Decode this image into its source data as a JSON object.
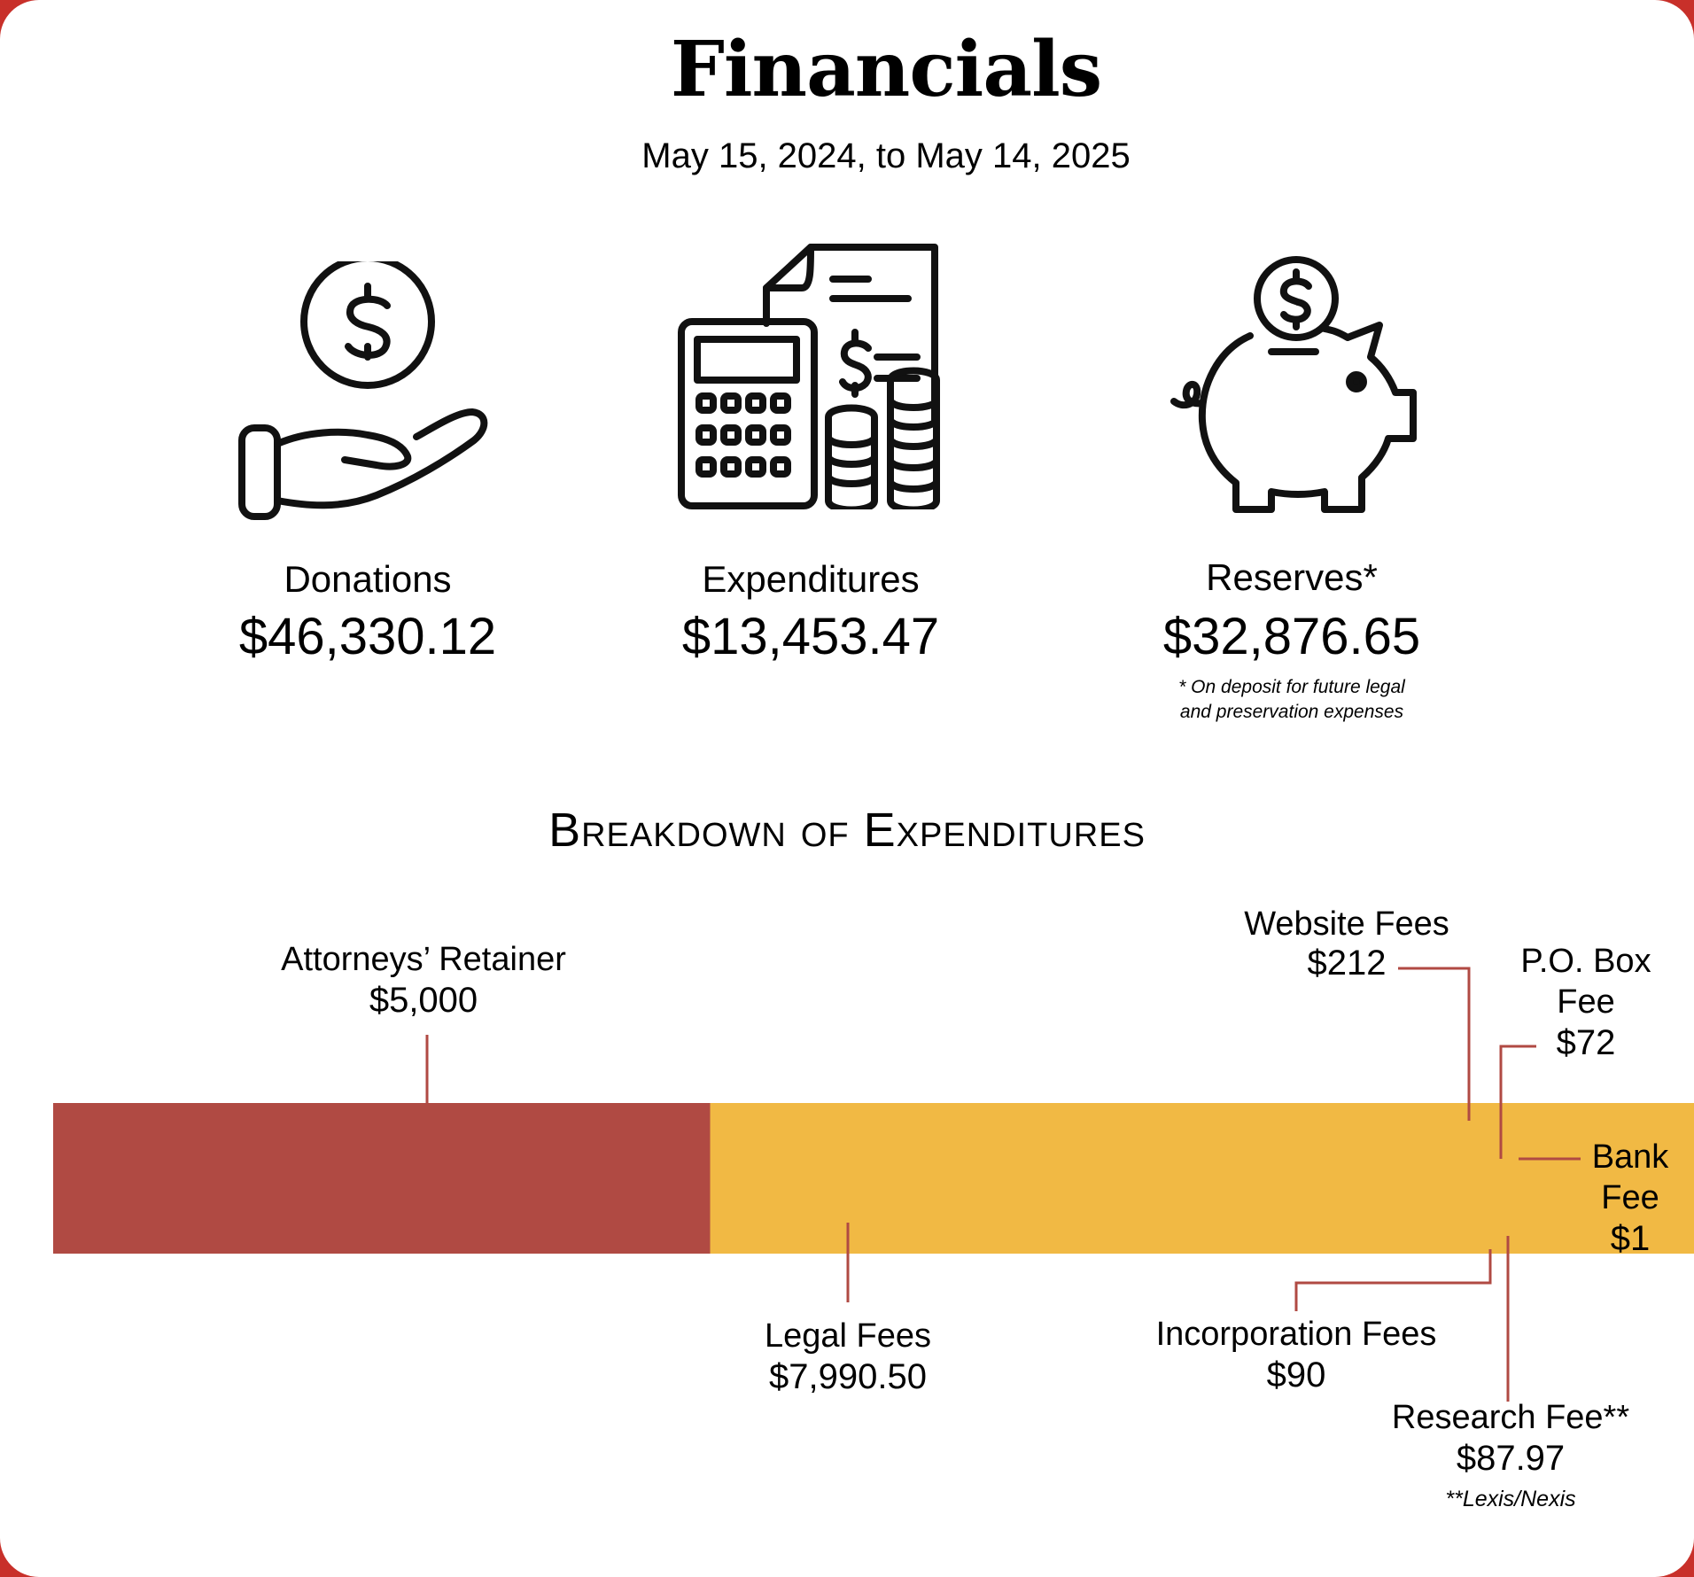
{
  "title": "Financials",
  "subtitle": "May 15, 2024, to May 14, 2025",
  "stats": [
    {
      "label": "Donations",
      "value": "$46,330.12",
      "icon": "hand-coin-icon"
    },
    {
      "label": "Expenditures",
      "value": "$13,453.47",
      "icon": "calculator-bill-icon"
    },
    {
      "label": "Reserves*",
      "value": "$32,876.65",
      "icon": "piggy-bank-icon",
      "note_line1": "* On deposit for future legal",
      "note_line2": "and preservation expenses"
    }
  ],
  "chart_data": {
    "type": "bar",
    "title": "Breakdown of Expenditures",
    "orientation": "horizontal-stacked",
    "series": [
      {
        "name": "Attorneys’ Retainer",
        "value": 5000,
        "label": "$5,000",
        "color": "#b04a43"
      },
      {
        "name": "Legal Fees",
        "value": 7990.5,
        "label": "$7,990.50",
        "color": "#f1b944"
      },
      {
        "name": "Website Fees",
        "value": 212,
        "label": "$212",
        "color": "#862d85"
      },
      {
        "name": "Incorporation Fees",
        "value": 90,
        "label": "$90",
        "color": "#f6e14a"
      },
      {
        "name": "Research Fee**",
        "value": 87.97,
        "label": "$87.97",
        "color": "#6fc7e8"
      },
      {
        "name": "P.O. Box Fee",
        "value": 72,
        "label": "$72",
        "color": "#c93a8c"
      },
      {
        "name": "Bank Fee",
        "value": 1,
        "label": "$1",
        "color": "#7a2878"
      }
    ],
    "footnote": "**Lexis/Nexis"
  },
  "colors": {
    "frame": "#c8302a",
    "leader": "#b04a43"
  }
}
